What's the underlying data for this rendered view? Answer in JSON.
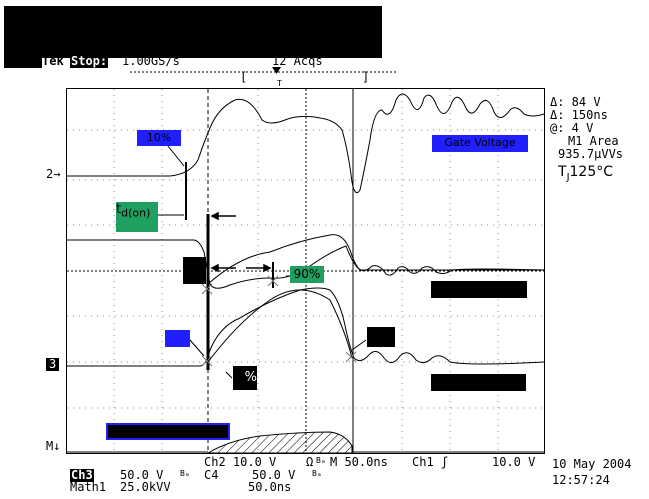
{
  "header": {
    "brand": "Tek",
    "run_state": "Stop:",
    "sample_rate": "1.00GS/s",
    "acquisitions": "12 Acqs"
  },
  "channel_markers": {
    "ch2": "2",
    "ch3": "3",
    "math": "M"
  },
  "labels": {
    "pct10_top": "10%",
    "pct90": "90%",
    "pct10_bottom": "%",
    "gate_voltage": "Gate Voltage",
    "td_on_main": "t",
    "td_on_sub": "d(on)"
  },
  "readout": {
    "delta_v": "Δ: 84 V",
    "delta_t": "Δ: 150ns",
    "at": "@: 4 V",
    "m1_area": "M1 Area",
    "area_value": "935.7µVVs",
    "tj_main": "T",
    "tj_sub": "J",
    "tj_value": "125°C"
  },
  "footer": {
    "ch2_scale": "Ch2    10.0 V",
    "omega": "Ω",
    "bw": "Bₘ",
    "timebase": "M 50.0ns",
    "trigger": "Ch1 ʃ",
    "trigger_level": "10.0 V",
    "ch3_label": "Ch3",
    "ch3_scale": "50.0 V",
    "ch4_label": "C4",
    "ch4_scale": "50.0 V",
    "math1": "Math1",
    "math1_scale": "25.0kVV",
    "math1_time": "50.0ns",
    "date": "10 May 2004",
    "time": "12:57:24"
  }
}
